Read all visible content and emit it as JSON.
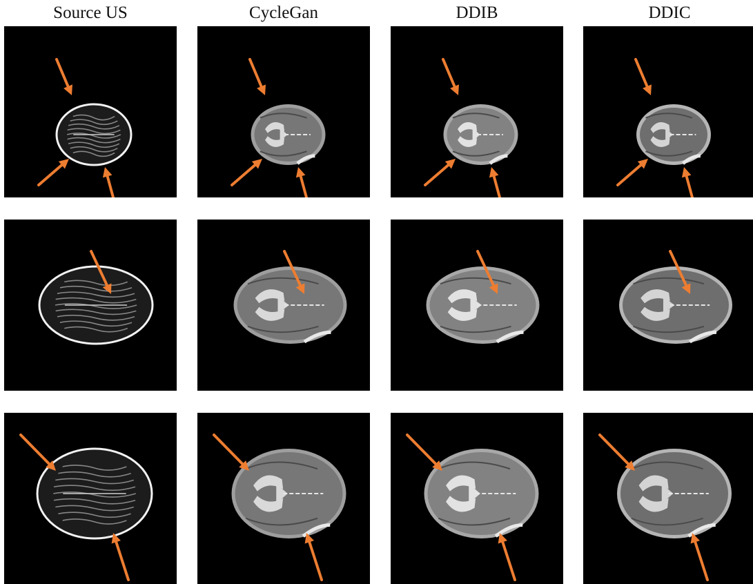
{
  "figure": {
    "columns": [
      {
        "label": "Source US",
        "style": "us"
      },
      {
        "label": "CycleGan",
        "style": "cyclegan"
      },
      {
        "label": "DDIB",
        "style": "ddib"
      },
      {
        "label": "DDIC",
        "style": "ddic"
      }
    ],
    "rows": [
      {
        "brain_size": "small"
      },
      {
        "brain_size": "medium"
      },
      {
        "brain_size": "large"
      }
    ],
    "arrow_color": "#ED7D31",
    "background_color": "#000000"
  }
}
